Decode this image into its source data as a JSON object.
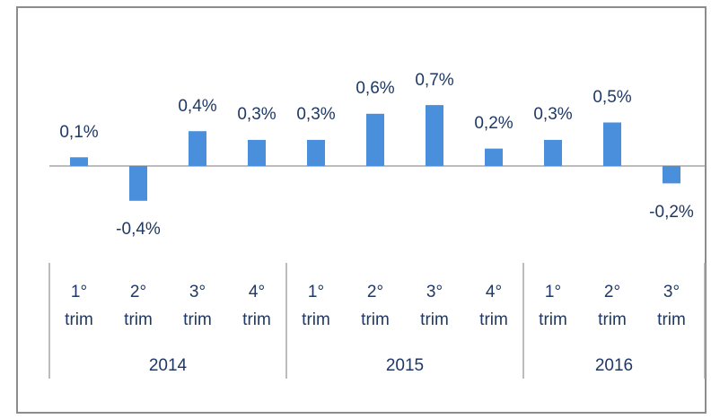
{
  "chart_data": {
    "type": "bar",
    "color": "#4a8fdb",
    "groups": [
      {
        "name": "2014",
        "categories": [
          "1° trim",
          "2° trim",
          "3° trim",
          "4° trim"
        ],
        "values": [
          0.1,
          -0.4,
          0.4,
          0.3
        ],
        "value_labels": [
          "0,1%",
          "-0,4%",
          "0,4%",
          "0,3%"
        ]
      },
      {
        "name": "2015",
        "categories": [
          "1° trim",
          "2° trim",
          "3° trim",
          "4° trim"
        ],
        "values": [
          0.3,
          0.6,
          0.7,
          0.2
        ],
        "value_labels": [
          "0,3%",
          "0,6%",
          "0,7%",
          "0,2%"
        ]
      },
      {
        "name": "2016",
        "categories": [
          "1° trim",
          "2° trim",
          "3° trim"
        ],
        "values": [
          0.3,
          0.5,
          -0.2
        ],
        "value_labels": [
          "0,3%",
          "0,5%",
          "-0,2%"
        ]
      }
    ]
  }
}
